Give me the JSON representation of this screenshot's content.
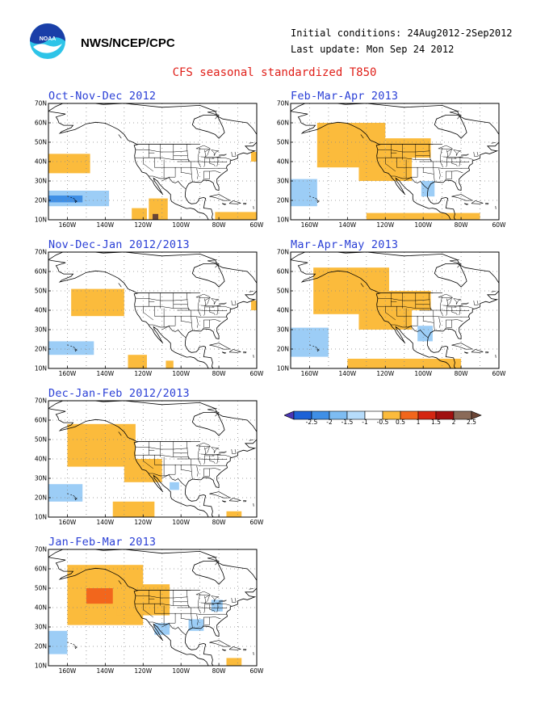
{
  "header": {
    "org": "NWS/NCEP/CPC",
    "logo_text": "NOAA",
    "initial_conditions": "Initial conditions: 24Aug2012-2Sep2012",
    "last_update": "Last update: Mon Sep 24 2012",
    "title": "CFS seasonal standardized T850"
  },
  "axes": {
    "y_labels": [
      "70N",
      "60N",
      "50N",
      "40N",
      "30N",
      "20N",
      "10N"
    ],
    "x_labels": [
      "160W",
      "140W",
      "120W",
      "100W",
      "80W",
      "60W"
    ]
  },
  "panels": [
    {
      "title": "Oct-Nov-Dec 2012",
      "anomalies": [
        {
          "lon": -170,
          "lat": 34,
          "w": 22,
          "h": 10,
          "level": 0.5
        },
        {
          "lon": -170,
          "lat": 17,
          "w": 32,
          "h": 8,
          "level": -0.5
        },
        {
          "lon": -170,
          "lat": 19,
          "w": 18,
          "h": 3.5,
          "level": -1
        },
        {
          "lon": -126,
          "lat": 10,
          "w": 8,
          "h": 6,
          "level": 0.5
        },
        {
          "lon": -117,
          "lat": 10,
          "w": 10,
          "h": 11,
          "level": 0.5
        },
        {
          "lon": -115,
          "lat": 10,
          "w": 3,
          "h": 3,
          "level": 2.5
        },
        {
          "lon": -82,
          "lat": 10,
          "w": 22,
          "h": 4,
          "level": 0.5
        },
        {
          "lon": -63,
          "lat": 40,
          "w": 3,
          "h": 5,
          "level": 0.5
        }
      ]
    },
    {
      "title": "Feb-Mar-Apr 2013",
      "anomalies": [
        {
          "lon": -156,
          "lat": 37,
          "w": 36,
          "h": 23,
          "level": 0.5
        },
        {
          "lon": -134,
          "lat": 30,
          "w": 28,
          "h": 16,
          "level": 0.5
        },
        {
          "lon": -120,
          "lat": 42,
          "w": 24,
          "h": 10,
          "level": 0.5
        },
        {
          "lon": -170,
          "lat": 17,
          "w": 14,
          "h": 14,
          "level": -0.5
        },
        {
          "lon": -101,
          "lat": 22,
          "w": 7,
          "h": 8,
          "level": -0.5
        },
        {
          "lon": -130,
          "lat": 10,
          "w": 60,
          "h": 3.5,
          "level": 0.5
        }
      ]
    },
    {
      "title": "Nov-Dec-Jan 2012/2013",
      "anomalies": [
        {
          "lon": -158,
          "lat": 37,
          "w": 28,
          "h": 14,
          "level": 0.5
        },
        {
          "lon": -170,
          "lat": 17,
          "w": 24,
          "h": 7,
          "level": -0.5
        },
        {
          "lon": -128,
          "lat": 10,
          "w": 10,
          "h": 7,
          "level": 0.5
        },
        {
          "lon": -108,
          "lat": 10,
          "w": 4,
          "h": 4,
          "level": 0.5
        },
        {
          "lon": -63,
          "lat": 40,
          "w": 3,
          "h": 5,
          "level": 0.5
        }
      ]
    },
    {
      "title": "Mar-Apr-May 2013",
      "anomalies": [
        {
          "lon": -158,
          "lat": 38,
          "w": 40,
          "h": 24,
          "level": 0.5
        },
        {
          "lon": -134,
          "lat": 30,
          "w": 28,
          "h": 18,
          "level": 0.5
        },
        {
          "lon": -118,
          "lat": 40,
          "w": 22,
          "h": 10,
          "level": 0.5
        },
        {
          "lon": -170,
          "lat": 16,
          "w": 20,
          "h": 15,
          "level": -0.5
        },
        {
          "lon": -103,
          "lat": 24,
          "w": 8,
          "h": 8,
          "level": -0.5
        },
        {
          "lon": -140,
          "lat": 10,
          "w": 60,
          "h": 5,
          "level": 0.5
        }
      ]
    },
    {
      "title": "Dec-Jan-Feb 2012/2013",
      "anomalies": [
        {
          "lon": -160,
          "lat": 36,
          "w": 36,
          "h": 22,
          "level": 0.5
        },
        {
          "lon": -130,
          "lat": 28,
          "w": 20,
          "h": 12,
          "level": 0.5
        },
        {
          "lon": -170,
          "lat": 18,
          "w": 18,
          "h": 9,
          "level": -0.5
        },
        {
          "lon": -136,
          "lat": 10,
          "w": 22,
          "h": 8,
          "level": 0.5
        },
        {
          "lon": -106,
          "lat": 24,
          "w": 5,
          "h": 4,
          "level": -0.5
        },
        {
          "lon": -76,
          "lat": 10,
          "w": 8,
          "h": 3,
          "level": 0.5
        }
      ]
    },
    {
      "title": "Jan-Feb-Mar 2013",
      "anomalies": [
        {
          "lon": -160,
          "lat": 31,
          "w": 40,
          "h": 31,
          "level": 0.5
        },
        {
          "lon": -134,
          "lat": 36,
          "w": 28,
          "h": 16,
          "level": 0.5
        },
        {
          "lon": -150,
          "lat": 42,
          "w": 14,
          "h": 8,
          "level": 1
        },
        {
          "lon": -170,
          "lat": 16,
          "w": 10,
          "h": 12,
          "level": -0.5
        },
        {
          "lon": -114,
          "lat": 26,
          "w": 8,
          "h": 6,
          "level": -0.5
        },
        {
          "lon": -96,
          "lat": 28,
          "w": 8,
          "h": 6,
          "level": -0.5
        },
        {
          "lon": -84,
          "lat": 38,
          "w": 6,
          "h": 6,
          "level": -0.5
        },
        {
          "lon": -76,
          "lat": 10,
          "w": 8,
          "h": 4,
          "level": 0.5
        }
      ]
    }
  ],
  "colorbar": {
    "labels": [
      "-2.5",
      "-2",
      "-1.5",
      "-1",
      "-0.5",
      "0.5",
      "1",
      "1.5",
      "2",
      "2.5"
    ],
    "colors": [
      "#4b35b5",
      "#1e62d6",
      "#3f8fe6",
      "#7dbcf2",
      "#b6dcfb",
      "#ffffff",
      "#fbbb3c",
      "#f2661c",
      "#d42612",
      "#a01010",
      "#8a6a58",
      "#6a4535"
    ]
  },
  "level_colors": {
    "-1": "#3f8fe6",
    "-0.5": "#9ccdf6",
    "0.5": "#fbbb3c",
    "1": "#f2661c",
    "2.5": "#6a4535"
  }
}
